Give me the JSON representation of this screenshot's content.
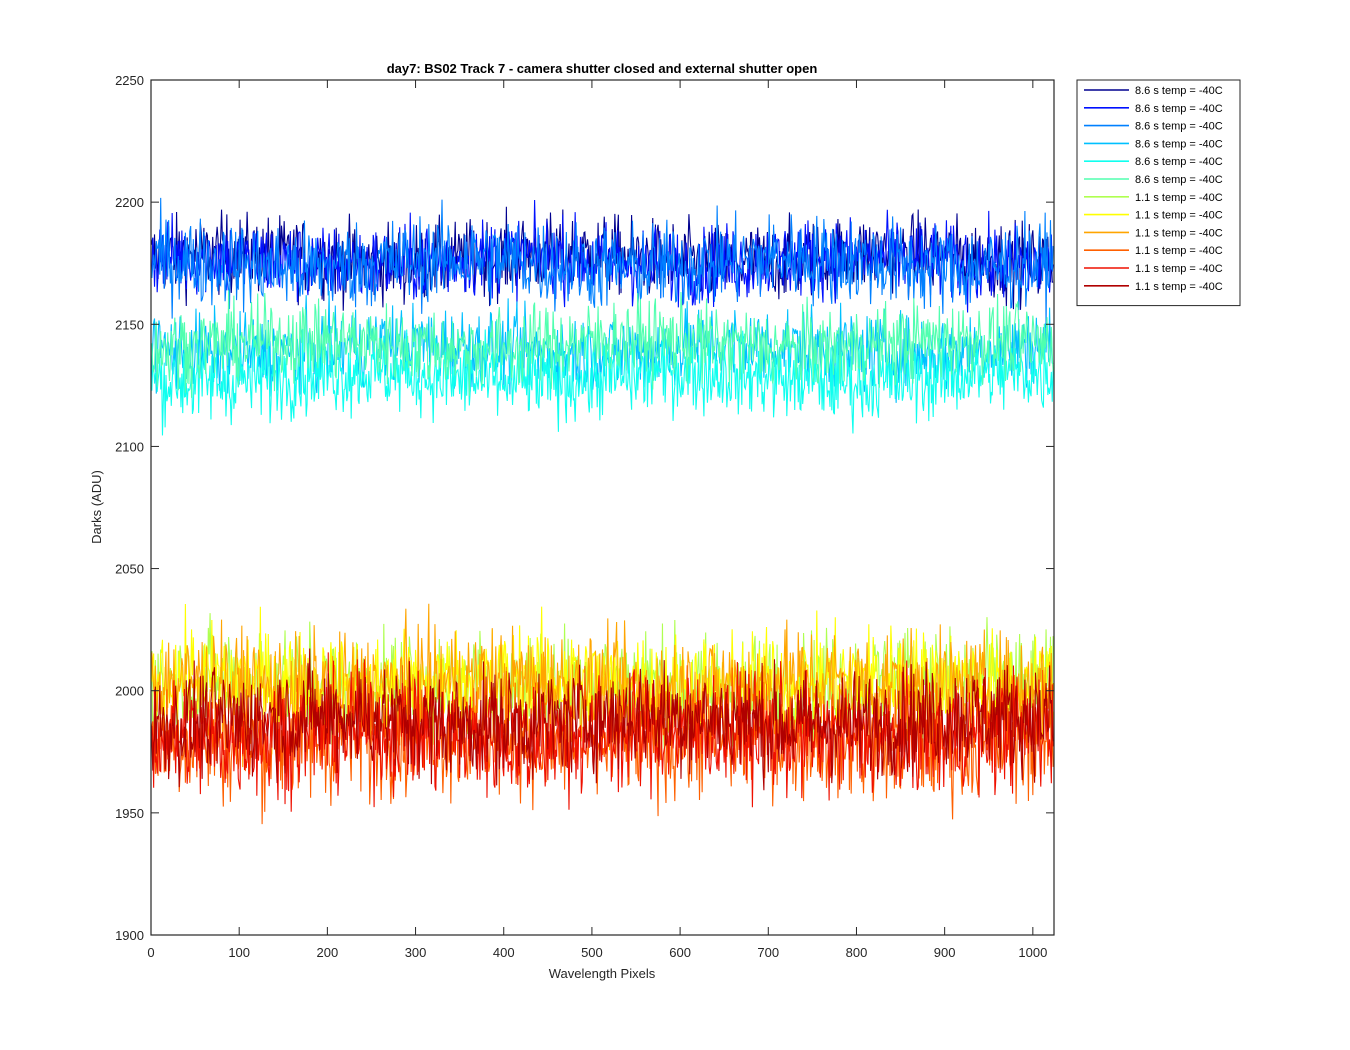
{
  "chart_data": {
    "type": "line",
    "title": "day7: BS02  Track 7 - camera shutter closed and external shutter open",
    "xlabel": "Wavelength Pixels",
    "ylabel": "Darks (ADU)",
    "xlim": [
      0,
      1024
    ],
    "ylim": [
      1900,
      2250
    ],
    "xticks": [
      0,
      100,
      200,
      300,
      400,
      500,
      600,
      700,
      800,
      900,
      1000
    ],
    "yticks": [
      1900,
      1950,
      2000,
      2050,
      2100,
      2150,
      2200,
      2250
    ],
    "grid": false,
    "legend_position": "outside-top-right",
    "n_points": 1024,
    "series": [
      {
        "name": "8.6 s temp = -40C",
        "color": "#00008F",
        "mean": 2177,
        "spread": 8,
        "min": 2145,
        "max": 2205
      },
      {
        "name": "8.6 s temp = -40C",
        "color": "#0010FF",
        "mean": 2176,
        "spread": 8,
        "min": 2144,
        "max": 2206
      },
      {
        "name": "8.6 s temp = -40C",
        "color": "#0080FF",
        "mean": 2175,
        "spread": 9,
        "min": 2140,
        "max": 2232
      },
      {
        "name": "8.6 s temp = -40C",
        "color": "#00C0FF",
        "mean": 2140,
        "spread": 8,
        "min": 2108,
        "max": 2175
      },
      {
        "name": "8.6 s temp = -40C",
        "color": "#10FFEF",
        "mean": 2128,
        "spread": 8,
        "min": 2088,
        "max": 2165
      },
      {
        "name": "8.6 s temp = -40C",
        "color": "#50FFAF",
        "mean": 2142,
        "spread": 8,
        "min": 2110,
        "max": 2175
      },
      {
        "name": "1.1 s temp = -40C",
        "color": "#AFFF50",
        "mean": 2003,
        "spread": 11,
        "min": 1925,
        "max": 2053
      },
      {
        "name": "1.1 s temp = -40C",
        "color": "#FFFF00",
        "mean": 2003,
        "spread": 11,
        "min": 1945,
        "max": 2052
      },
      {
        "name": "1.1 s temp = -40C",
        "color": "#FFA500",
        "mean": 2002,
        "spread": 11,
        "min": 1945,
        "max": 2053
      },
      {
        "name": "1.1 s temp = -40C",
        "color": "#FF6000",
        "mean": 1980,
        "spread": 12,
        "min": 1916,
        "max": 2035
      },
      {
        "name": "1.1 s temp = -40C",
        "color": "#EF1000",
        "mean": 1982,
        "spread": 12,
        "min": 1916,
        "max": 2035
      },
      {
        "name": "1.1 s temp = -40C",
        "color": "#B00000",
        "mean": 1988,
        "spread": 11,
        "min": 1935,
        "max": 2035
      }
    ]
  }
}
